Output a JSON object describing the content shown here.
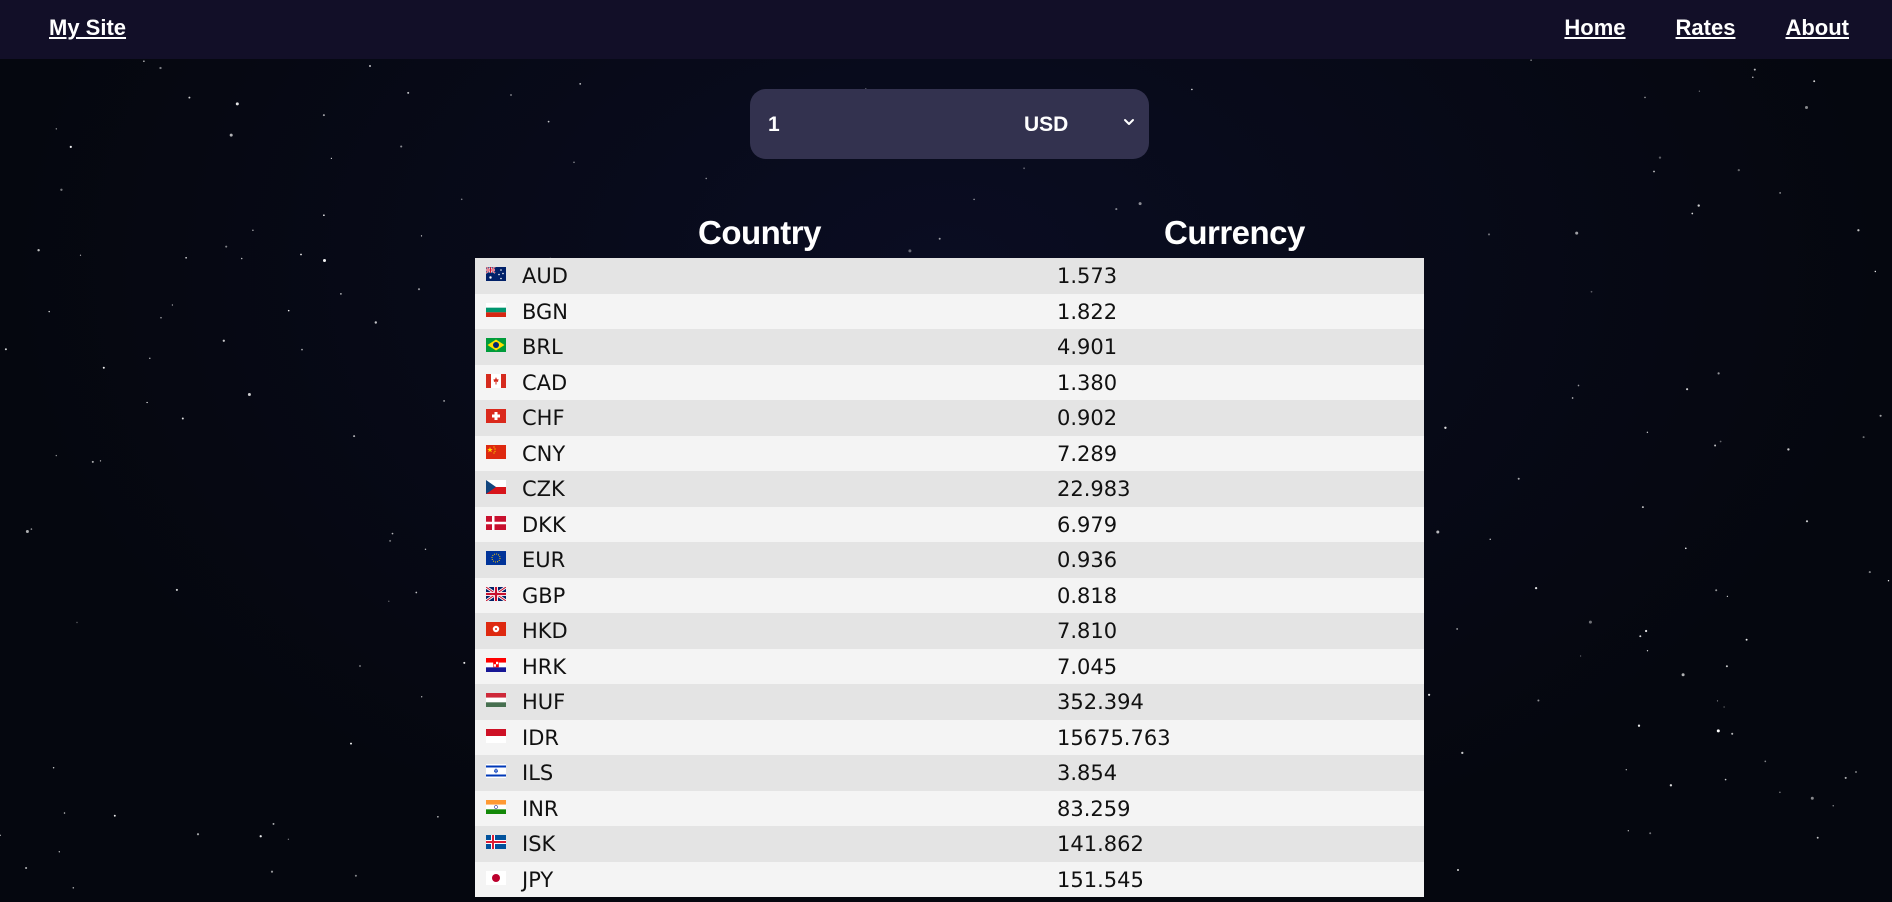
{
  "nav": {
    "brand": "My Site",
    "links": [
      "Home",
      "Rates",
      "About"
    ]
  },
  "converter": {
    "amount": "1",
    "currency": "USD"
  },
  "table": {
    "headers": [
      "Country",
      "Currency"
    ],
    "rows": [
      {
        "code": "AUD",
        "rate": "1.573",
        "flag": "australia-flag-icon"
      },
      {
        "code": "BGN",
        "rate": "1.822",
        "flag": "bulgaria-flag-icon"
      },
      {
        "code": "BRL",
        "rate": "4.901",
        "flag": "brazil-flag-icon"
      },
      {
        "code": "CAD",
        "rate": "1.380",
        "flag": "canada-flag-icon"
      },
      {
        "code": "CHF",
        "rate": "0.902",
        "flag": "switzerland-flag-icon"
      },
      {
        "code": "CNY",
        "rate": "7.289",
        "flag": "china-flag-icon"
      },
      {
        "code": "CZK",
        "rate": "22.983",
        "flag": "czechia-flag-icon"
      },
      {
        "code": "DKK",
        "rate": "6.979",
        "flag": "denmark-flag-icon"
      },
      {
        "code": "EUR",
        "rate": "0.936",
        "flag": "eu-flag-icon"
      },
      {
        "code": "GBP",
        "rate": "0.818",
        "flag": "uk-flag-icon"
      },
      {
        "code": "HKD",
        "rate": "7.810",
        "flag": "hong-kong-flag-icon"
      },
      {
        "code": "HRK",
        "rate": "7.045",
        "flag": "croatia-flag-icon"
      },
      {
        "code": "HUF",
        "rate": "352.394",
        "flag": "hungary-flag-icon"
      },
      {
        "code": "IDR",
        "rate": "15675.763",
        "flag": "indonesia-flag-icon"
      },
      {
        "code": "ILS",
        "rate": "3.854",
        "flag": "israel-flag-icon"
      },
      {
        "code": "INR",
        "rate": "83.259",
        "flag": "india-flag-icon"
      },
      {
        "code": "ISK",
        "rate": "141.862",
        "flag": "iceland-flag-icon"
      },
      {
        "code": "JPY",
        "rate": "151.545",
        "flag": "japan-flag-icon"
      }
    ]
  },
  "colors": {
    "background": "#05070f",
    "navbar": "#120f28",
    "converter": "#33324f",
    "row_odd": "#e4e4e4",
    "row_even": "#f4f4f4"
  }
}
